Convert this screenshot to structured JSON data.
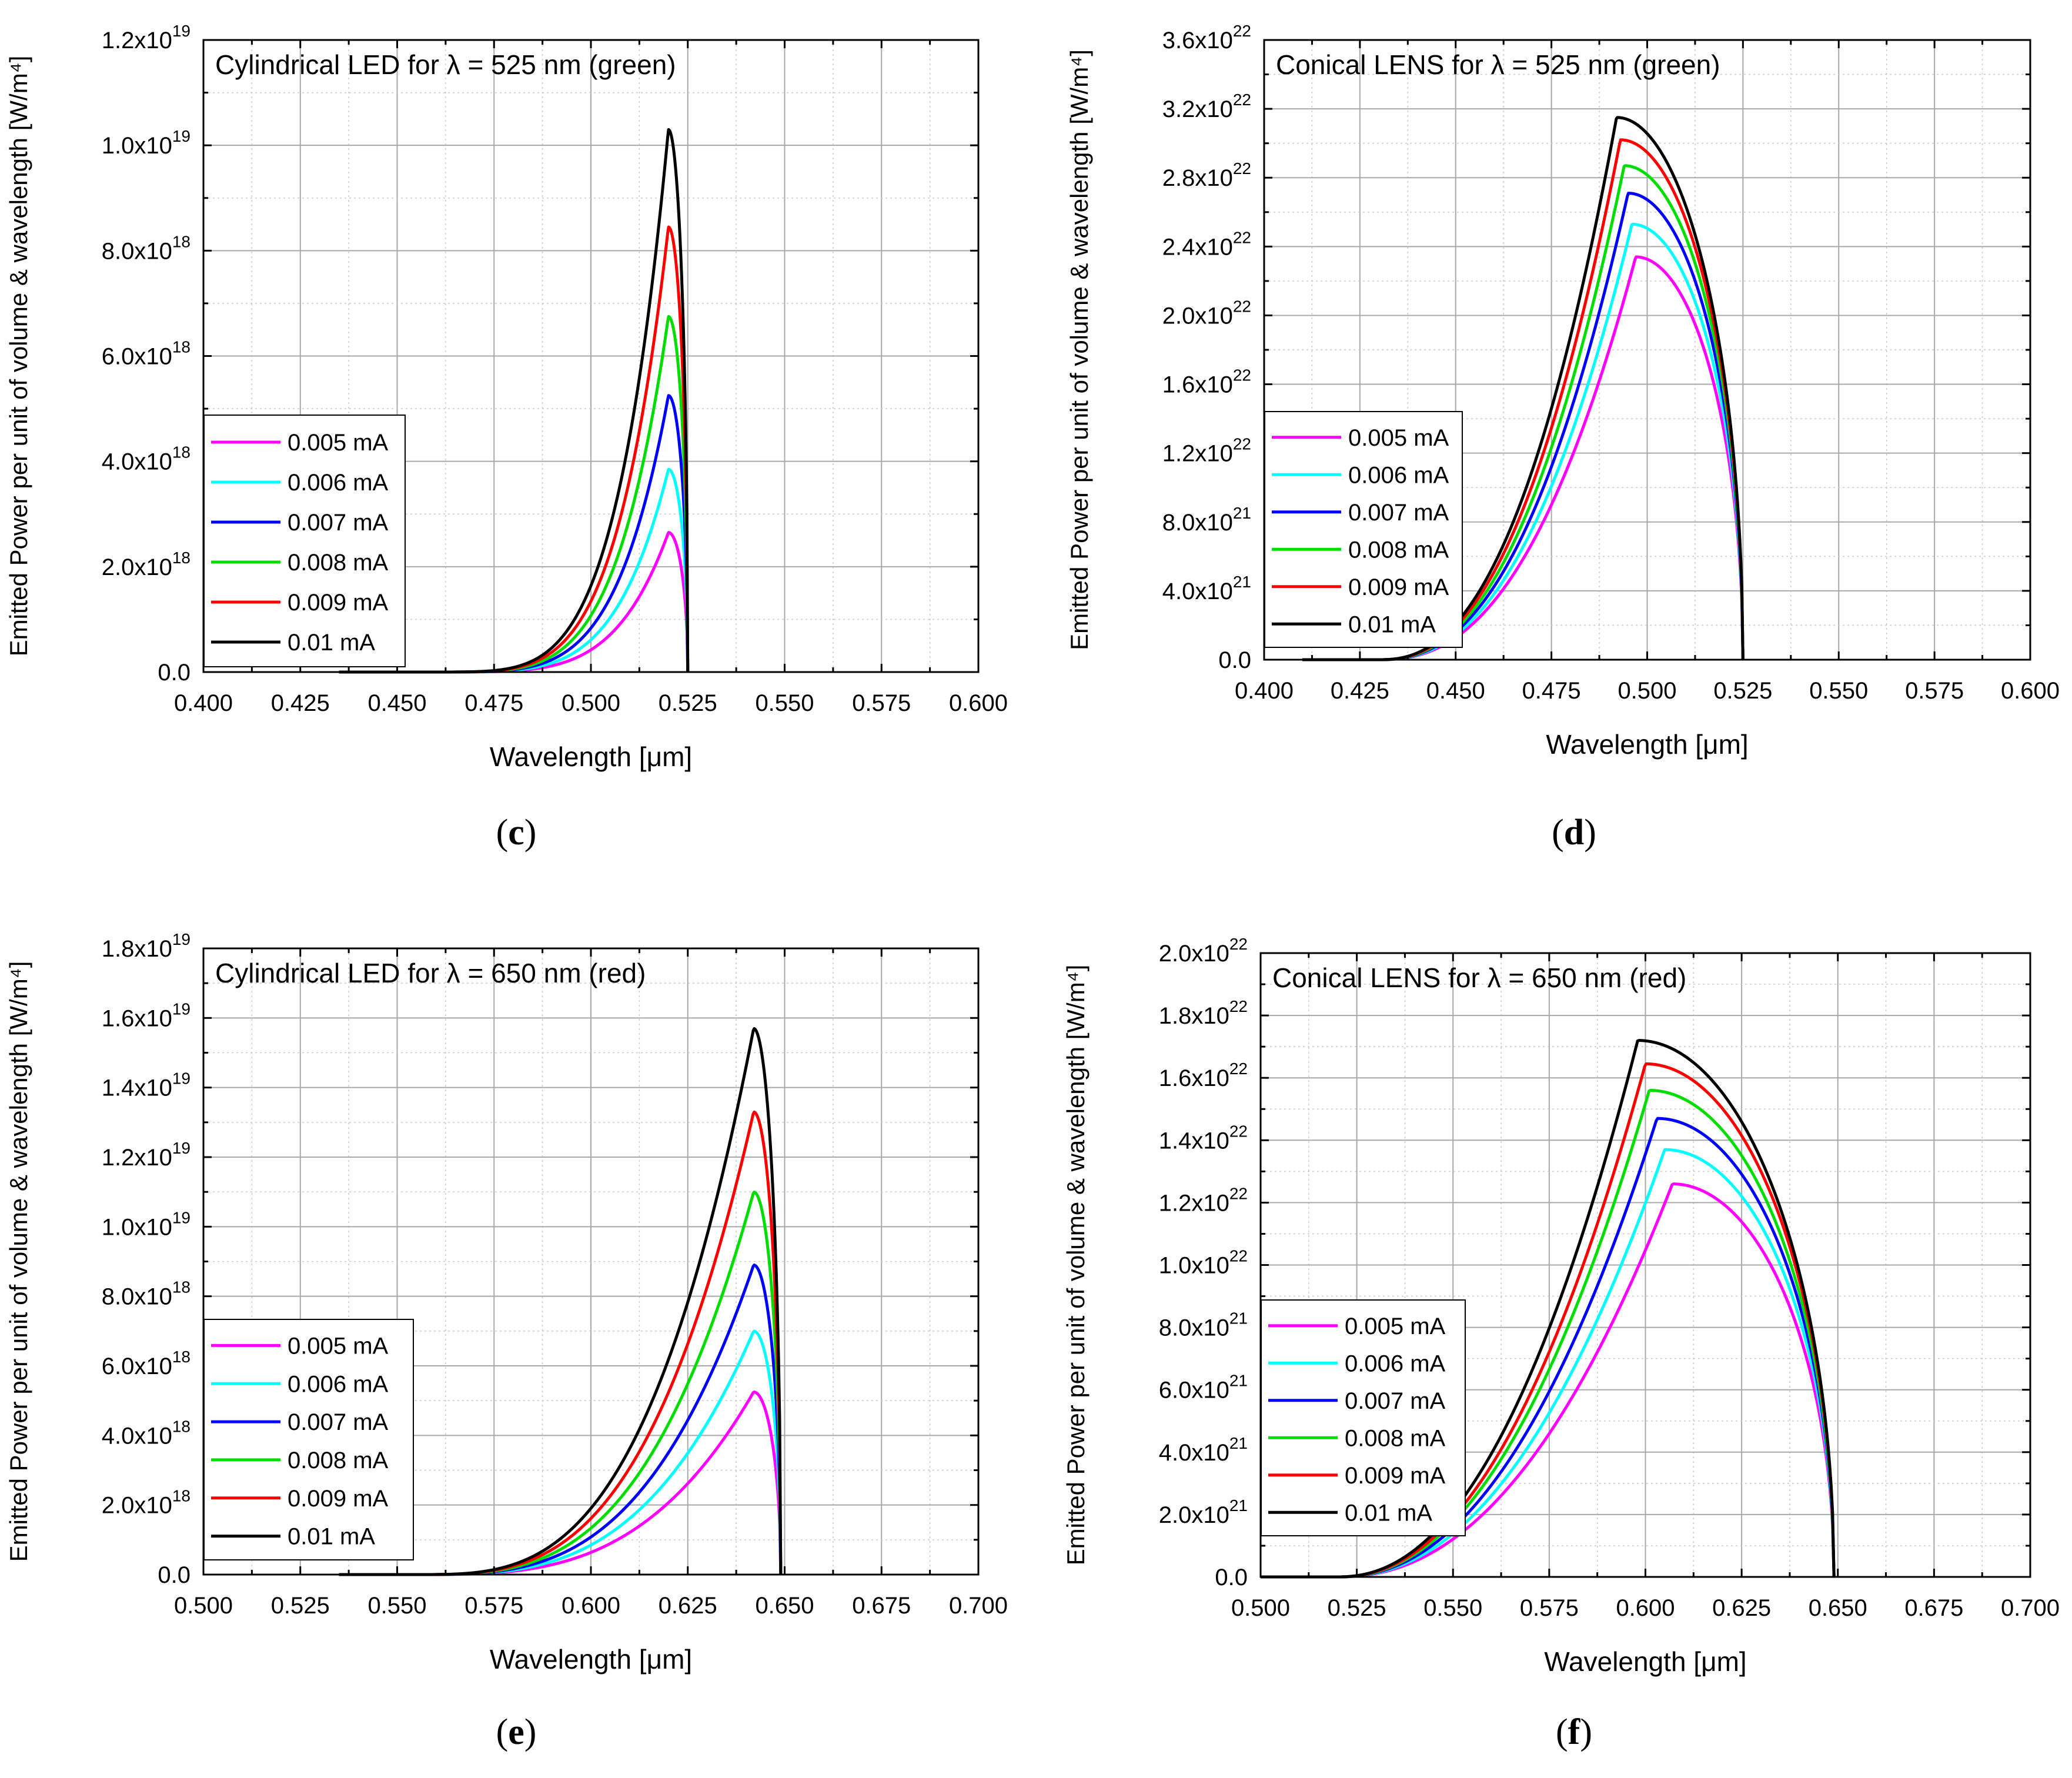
{
  "chart_data": [
    {
      "type": "line",
      "panel_label": "c",
      "title": "Cylindrical LED for λ = 525 nm (green)",
      "xlabel": "Wavelength [μm]",
      "ylabel": "Emitted Power per unit of volume & wavelength [W/m⁴]",
      "xlim": [
        0.4,
        0.6
      ],
      "ylim": [
        0,
        1.2e+19
      ],
      "x_ticks": [
        0.4,
        0.425,
        0.45,
        0.475,
        0.5,
        0.525,
        0.55,
        0.575,
        0.6
      ],
      "x_tick_labels": [
        "0.400",
        "0.425",
        "0.450",
        "0.475",
        "0.500",
        "0.525",
        "0.550",
        "0.575",
        "0.600"
      ],
      "y_ticks": [
        0,
        2e+18,
        4e+18,
        6e+18,
        8e+18,
        1e+19,
        1.2e+19
      ],
      "y_tick_labels": [
        {
          "mant": "0.0",
          "exp": ""
        },
        {
          "mant": "2.0x10",
          "exp": "18"
        },
        {
          "mant": "4.0x10",
          "exp": "18"
        },
        {
          "mant": "6.0x10",
          "exp": "18"
        },
        {
          "mant": "8.0x10",
          "exp": "18"
        },
        {
          "mant": "1.0x10",
          "exp": "19"
        },
        {
          "mant": "1.2x10",
          "exp": "19"
        }
      ],
      "grid": true,
      "legend_position": "middle-left",
      "curve_shape": {
        "onset": 0.455,
        "cutoff": 0.525,
        "rise": 5.0
      },
      "series": [
        {
          "name": "0.005 mA",
          "color": "#ff00ff",
          "peak_x": 0.52,
          "peak_y": 2.65e+18
        },
        {
          "name": "0.006 mA",
          "color": "#00ffff",
          "peak_x": 0.52,
          "peak_y": 3.85e+18
        },
        {
          "name": "0.007 mA",
          "color": "#0000ff",
          "peak_x": 0.52,
          "peak_y": 5.25e+18
        },
        {
          "name": "0.008 mA",
          "color": "#00dd00",
          "peak_x": 0.52,
          "peak_y": 6.75e+18
        },
        {
          "name": "0.009 mA",
          "color": "#ff0000",
          "peak_x": 0.52,
          "peak_y": 8.45e+18
        },
        {
          "name": "0.01 mA",
          "color": "#000000",
          "peak_x": 0.52,
          "peak_y": 1.03e+19
        }
      ]
    },
    {
      "type": "line",
      "panel_label": "d",
      "title": "Conical LENS for λ = 525 nm (green)",
      "xlabel": "Wavelength [μm]",
      "ylabel": "Emitted Power per unit of volume & wavelength [W/m⁴]",
      "xlim": [
        0.4,
        0.6
      ],
      "ylim": [
        0,
        3.6e+22
      ],
      "x_ticks": [
        0.4,
        0.425,
        0.45,
        0.475,
        0.5,
        0.525,
        0.55,
        0.575,
        0.6
      ],
      "x_tick_labels": [
        "0.400",
        "0.425",
        "0.450",
        "0.475",
        "0.500",
        "0.525",
        "0.550",
        "0.575",
        "0.600"
      ],
      "y_ticks": [
        0,
        4e+21,
        8e+21,
        1.2e+22,
        1.6e+22,
        2e+22,
        2.4e+22,
        2.8e+22,
        3.2e+22,
        3.6e+22
      ],
      "y_tick_labels": [
        {
          "mant": "0.0",
          "exp": ""
        },
        {
          "mant": "4.0x10",
          "exp": "21"
        },
        {
          "mant": "8.0x10",
          "exp": "21"
        },
        {
          "mant": "1.2x10",
          "exp": "22"
        },
        {
          "mant": "1.6x10",
          "exp": "22"
        },
        {
          "mant": "2.0x10",
          "exp": "22"
        },
        {
          "mant": "2.4x10",
          "exp": "22"
        },
        {
          "mant": "2.8x10",
          "exp": "22"
        },
        {
          "mant": "3.2x10",
          "exp": "22"
        },
        {
          "mant": "3.6x10",
          "exp": "22"
        }
      ],
      "grid": true,
      "legend_position": "bottom-left",
      "curve_shape": {
        "onset": 0.43,
        "cutoff": 0.525,
        "rise": 2.4
      },
      "series": [
        {
          "name": "0.005 mA",
          "color": "#ff00ff",
          "peak_x": 0.497,
          "peak_y": 2.34e+22
        },
        {
          "name": "0.006 mA",
          "color": "#00ffff",
          "peak_x": 0.496,
          "peak_y": 2.53e+22
        },
        {
          "name": "0.007 mA",
          "color": "#0000ff",
          "peak_x": 0.495,
          "peak_y": 2.71e+22
        },
        {
          "name": "0.008 mA",
          "color": "#00dd00",
          "peak_x": 0.494,
          "peak_y": 2.87e+22
        },
        {
          "name": "0.009 mA",
          "color": "#ff0000",
          "peak_x": 0.493,
          "peak_y": 3.02e+22
        },
        {
          "name": "0.01 mA",
          "color": "#000000",
          "peak_x": 0.492,
          "peak_y": 3.15e+22
        }
      ]
    },
    {
      "type": "line",
      "panel_label": "e",
      "title": "Cylindrical LED for λ = 650 nm (red)",
      "xlabel": "Wavelength [μm]",
      "ylabel": "Emitted Power per unit of volume & wavelength [W/m⁴]",
      "xlim": [
        0.5,
        0.7
      ],
      "ylim": [
        0,
        1.8e+19
      ],
      "x_ticks": [
        0.5,
        0.525,
        0.55,
        0.575,
        0.6,
        0.625,
        0.65,
        0.675,
        0.7
      ],
      "x_tick_labels": [
        "0.500",
        "0.525",
        "0.550",
        "0.575",
        "0.600",
        "0.625",
        "0.650",
        "0.675",
        "0.700"
      ],
      "y_ticks": [
        0,
        2e+18,
        4e+18,
        6e+18,
        8e+18,
        1e+19,
        1.2e+19,
        1.4e+19,
        1.6e+19,
        1.8e+19
      ],
      "y_tick_labels": [
        {
          "mant": "0.0",
          "exp": ""
        },
        {
          "mant": "2.0x10",
          "exp": "18"
        },
        {
          "mant": "4.0x10",
          "exp": "18"
        },
        {
          "mant": "6.0x10",
          "exp": "18"
        },
        {
          "mant": "8.0x10",
          "exp": "18"
        },
        {
          "mant": "1.0x10",
          "exp": "19"
        },
        {
          "mant": "1.2x10",
          "exp": "19"
        },
        {
          "mant": "1.4x10",
          "exp": "19"
        },
        {
          "mant": "1.6x10",
          "exp": "19"
        },
        {
          "mant": "1.8x10",
          "exp": "19"
        }
      ],
      "grid": true,
      "legend_position": "bottom-left",
      "curve_shape": {
        "onset": 0.555,
        "cutoff": 0.649,
        "rise": 3.2
      },
      "series": [
        {
          "name": "0.005 mA",
          "color": "#ff00ff",
          "peak_x": 0.642,
          "peak_y": 5.25e+18
        },
        {
          "name": "0.006 mA",
          "color": "#00ffff",
          "peak_x": 0.642,
          "peak_y": 7e+18
        },
        {
          "name": "0.007 mA",
          "color": "#0000ff",
          "peak_x": 0.642,
          "peak_y": 8.9e+18
        },
        {
          "name": "0.008 mA",
          "color": "#00dd00",
          "peak_x": 0.642,
          "peak_y": 1.1e+19
        },
        {
          "name": "0.009 mA",
          "color": "#ff0000",
          "peak_x": 0.642,
          "peak_y": 1.33e+19
        },
        {
          "name": "0.01 mA",
          "color": "#000000",
          "peak_x": 0.642,
          "peak_y": 1.57e+19
        }
      ]
    },
    {
      "type": "line",
      "panel_label": "f",
      "title": "Conical LENS for λ = 650 nm (red)",
      "xlabel": "Wavelength [μm]",
      "ylabel": "Emitted Power per unit of volume & wavelength [W/m⁴]",
      "xlim": [
        0.5,
        0.7
      ],
      "ylim": [
        0,
        2e+22
      ],
      "x_ticks": [
        0.5,
        0.525,
        0.55,
        0.575,
        0.6,
        0.625,
        0.65,
        0.675,
        0.7
      ],
      "x_tick_labels": [
        "0.500",
        "0.525",
        "0.550",
        "0.575",
        "0.600",
        "0.625",
        "0.650",
        "0.675",
        "0.700"
      ],
      "y_ticks": [
        0,
        2e+21,
        4e+21,
        6e+21,
        8e+21,
        1e+22,
        1.2e+22,
        1.4e+22,
        1.6e+22,
        1.8e+22,
        2e+22
      ],
      "y_tick_labels": [
        {
          "mant": "0.0",
          "exp": ""
        },
        {
          "mant": "2.0x10",
          "exp": "21"
        },
        {
          "mant": "4.0x10",
          "exp": "21"
        },
        {
          "mant": "6.0x10",
          "exp": "21"
        },
        {
          "mant": "8.0x10",
          "exp": "21"
        },
        {
          "mant": "1.0x10",
          "exp": "22"
        },
        {
          "mant": "1.2x10",
          "exp": "22"
        },
        {
          "mant": "1.4x10",
          "exp": "22"
        },
        {
          "mant": "1.6x10",
          "exp": "22"
        },
        {
          "mant": "1.8x10",
          "exp": "22"
        },
        {
          "mant": "2.0x10",
          "exp": "22"
        }
      ],
      "grid": true,
      "legend_position": "bottom-left",
      "curve_shape": {
        "onset": 0.52,
        "cutoff": 0.649,
        "rise": 2.2
      },
      "series": [
        {
          "name": "0.005 mA",
          "color": "#ff00ff",
          "peak_x": 0.607,
          "peak_y": 1.26e+22
        },
        {
          "name": "0.006 mA",
          "color": "#00ffff",
          "peak_x": 0.605,
          "peak_y": 1.37e+22
        },
        {
          "name": "0.007 mA",
          "color": "#0000ff",
          "peak_x": 0.603,
          "peak_y": 1.47e+22
        },
        {
          "name": "0.008 mA",
          "color": "#00dd00",
          "peak_x": 0.601,
          "peak_y": 1.56e+22
        },
        {
          "name": "0.009 mA",
          "color": "#ff0000",
          "peak_x": 0.6,
          "peak_y": 1.645e+22
        },
        {
          "name": "0.01 mA",
          "color": "#000000",
          "peak_x": 0.598,
          "peak_y": 1.72e+22
        }
      ]
    }
  ]
}
